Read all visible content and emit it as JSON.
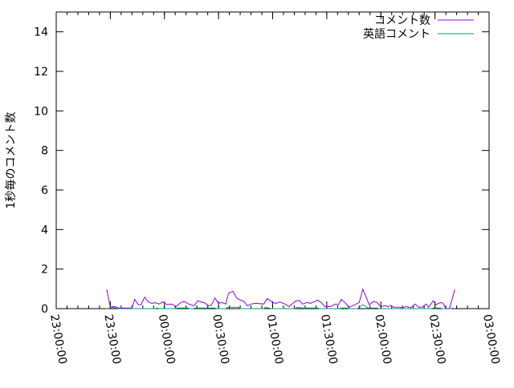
{
  "chart_data": {
    "type": "line",
    "title": "",
    "xlabel": "",
    "ylabel": "1秒毎のコメント数",
    "xlim": [
      "23:00:00",
      "03:00:00"
    ],
    "ylim": [
      0,
      15
    ],
    "x_ticks": [
      "23:00:00",
      "23:30:00",
      "00:00:00",
      "00:30:00",
      "01:00:00",
      "01:30:00",
      "02:00:00",
      "02:30:00",
      "03:00:00"
    ],
    "y_ticks": [
      "0",
      "2",
      "4",
      "6",
      "8",
      "10",
      "12",
      "14"
    ],
    "grid": false,
    "legend": "top-right",
    "series": [
      {
        "name": "コメント数",
        "color": "#9400d3",
        "points": [
          [
            "23:28:00",
            0.97
          ],
          [
            "23:30:00",
            0.07
          ],
          [
            "23:32:00",
            0.11
          ],
          [
            "23:35:00",
            0.03
          ],
          [
            "23:42:00",
            0.03
          ],
          [
            "23:43:30",
            0.47
          ],
          [
            "23:45:30",
            0.2
          ],
          [
            "23:47:00",
            0.2
          ],
          [
            "23:49:00",
            0.58
          ],
          [
            "23:51:00",
            0.34
          ],
          [
            "23:53:00",
            0.27
          ],
          [
            "23:55:00",
            0.3
          ],
          [
            "23:57:00",
            0.23
          ],
          [
            "23:59:00",
            0.34
          ],
          [
            "00:01:30",
            0.2
          ],
          [
            "00:04:00",
            0.23
          ],
          [
            "00:06:30",
            0.1
          ],
          [
            "00:09:00",
            0.31
          ],
          [
            "00:11:00",
            0.36
          ],
          [
            "00:13:30",
            0.23
          ],
          [
            "00:16:30",
            0.14
          ],
          [
            "00:18:30",
            0.4
          ],
          [
            "00:21:00",
            0.31
          ],
          [
            "00:22:00",
            0.31
          ],
          [
            "00:24:30",
            0.14
          ],
          [
            "00:26:00",
            0.18
          ],
          [
            "00:28:00",
            0.54
          ],
          [
            "00:30:00",
            0.27
          ],
          [
            "00:32:00",
            0.31
          ],
          [
            "00:34:00",
            0.23
          ],
          [
            "00:35:30",
            0.78
          ],
          [
            "00:38:00",
            0.88
          ],
          [
            "00:40:00",
            0.54
          ],
          [
            "00:42:00",
            0.43
          ],
          [
            "00:44:00",
            0.36
          ],
          [
            "00:46:00",
            0.14
          ],
          [
            "00:48:00",
            0.23
          ],
          [
            "00:50:30",
            0.27
          ],
          [
            "00:55:00",
            0.23
          ],
          [
            "00:57:00",
            0.51
          ],
          [
            "01:00:00",
            0.31
          ],
          [
            "01:02:00",
            0.27
          ],
          [
            "01:04:00",
            0.34
          ],
          [
            "01:07:00",
            0.23
          ],
          [
            "01:09:00",
            0.1
          ],
          [
            "01:13:00",
            0.4
          ],
          [
            "01:15:00",
            0.4
          ],
          [
            "01:16:30",
            0.23
          ],
          [
            "01:19:00",
            0.31
          ],
          [
            "01:21:00",
            0.27
          ],
          [
            "01:25:00",
            0.43
          ],
          [
            "01:27:00",
            0.31
          ],
          [
            "01:29:00",
            0.1
          ],
          [
            "01:32:00",
            0.1
          ],
          [
            "01:35:00",
            0.23
          ],
          [
            "01:36:30",
            0.2
          ],
          [
            "01:38:00",
            0.47
          ],
          [
            "01:40:00",
            0.31
          ],
          [
            "01:42:30",
            0.07
          ],
          [
            "01:45:00",
            0.18
          ],
          [
            "01:48:00",
            0.31
          ],
          [
            "01:50:00",
            0.98
          ],
          [
            "01:52:00",
            0.54
          ],
          [
            "01:53:30",
            0.2
          ],
          [
            "01:56:00",
            0.36
          ],
          [
            "01:58:00",
            0.31
          ],
          [
            "02:00:00",
            0.07
          ],
          [
            "02:02:00",
            0.16
          ],
          [
            "02:04:00",
            0.1
          ],
          [
            "02:05:30",
            0.16
          ],
          [
            "02:07:00",
            0.07
          ],
          [
            "02:10:00",
            0.07
          ],
          [
            "02:12:00",
            0.04
          ],
          [
            "02:14:00",
            0.11
          ],
          [
            "02:16:30",
            0.04
          ],
          [
            "02:19:00",
            0.23
          ],
          [
            "02:21:00",
            0.07
          ],
          [
            "02:23:00",
            0.07
          ],
          [
            "02:25:00",
            0.23
          ],
          [
            "02:26:30",
            0.07
          ],
          [
            "02:29:00",
            0.4
          ],
          [
            "02:30:30",
            0.2
          ],
          [
            "02:33:00",
            0.31
          ],
          [
            "02:34:30",
            0.27
          ],
          [
            "02:36:00",
            0
          ],
          [
            "02:38:00",
            0
          ],
          [
            "02:41:00",
            0.97
          ]
        ]
      },
      {
        "name": "英語コメント",
        "color": "#009e73",
        "points": [
          [
            "23:28:00",
            0
          ],
          [
            "23:30:00",
            0.03
          ],
          [
            "23:31:00",
            0.07
          ],
          [
            "23:33:00",
            0.03
          ],
          [
            "23:35:00",
            0
          ],
          [
            "23:55:00",
            0
          ],
          [
            "23:56:00",
            0.03
          ],
          [
            "23:57:00",
            0
          ],
          [
            "00:06:00",
            0
          ],
          [
            "00:07:00",
            0.03
          ],
          [
            "00:13:00",
            0.03
          ],
          [
            "00:14:00",
            0
          ],
          [
            "00:16:00",
            0
          ],
          [
            "00:17:00",
            0.03
          ],
          [
            "00:28:00",
            0.03
          ],
          [
            "00:29:00",
            0
          ],
          [
            "00:34:00",
            0
          ],
          [
            "00:35:00",
            0.07
          ],
          [
            "00:41:00",
            0.07
          ],
          [
            "00:42:00",
            0
          ],
          [
            "00:55:00",
            0
          ],
          [
            "00:56:00",
            0.07
          ],
          [
            "00:58:00",
            0.03
          ],
          [
            "00:59:00",
            0
          ],
          [
            "01:12:00",
            0
          ],
          [
            "01:14:00",
            0.07
          ],
          [
            "01:16:00",
            0.03
          ],
          [
            "01:21:00",
            0.03
          ],
          [
            "01:25:00",
            0.03
          ],
          [
            "01:26:00",
            0
          ],
          [
            "01:37:00",
            0
          ],
          [
            "01:38:00",
            0.03
          ],
          [
            "01:41:00",
            0.03
          ],
          [
            "01:42:00",
            0
          ],
          [
            "01:47:00",
            0
          ],
          [
            "01:50:00",
            0.2
          ],
          [
            "01:53:00",
            0.03
          ],
          [
            "01:58:00",
            0.03
          ],
          [
            "01:59:00",
            0
          ],
          [
            "02:28:00",
            0
          ],
          [
            "02:29:00",
            0.03
          ],
          [
            "02:33:00",
            0.03
          ],
          [
            "02:34:00",
            0
          ],
          [
            "02:39:00",
            0
          ],
          [
            "02:40:00",
            0.03
          ],
          [
            "02:41:00",
            0
          ]
        ]
      }
    ]
  }
}
